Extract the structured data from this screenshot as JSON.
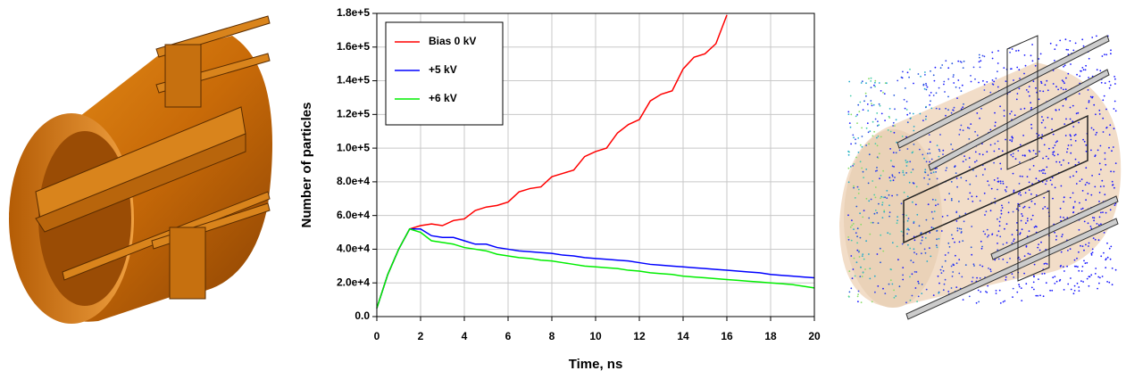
{
  "chart_data": {
    "type": "line",
    "x_label": "Time, ns",
    "y_label": "Number of particles",
    "x": [
      0,
      0.5,
      1,
      1.5,
      2,
      2.5,
      3,
      3.5,
      4,
      4.5,
      5,
      5.5,
      6,
      6.5,
      7,
      7.5,
      8,
      8.5,
      9,
      9.5,
      10,
      10.5,
      11,
      11.5,
      12,
      12.5,
      13,
      13.5,
      14,
      14.5,
      15,
      15.5,
      16,
      16.5,
      17,
      17.5,
      18,
      18.5,
      19,
      19.5,
      20
    ],
    "series": [
      {
        "name": "Bias 0 kV",
        "color": "#ff0000",
        "values": [
          5000,
          25000,
          40000,
          52000,
          54000,
          55000,
          54000,
          57000,
          58000,
          63000,
          65000,
          66000,
          68000,
          74000,
          76000,
          77000,
          83000,
          85000,
          87000,
          95000,
          98000,
          100000,
          109000,
          114000,
          117000,
          128000,
          132000,
          134000,
          147000,
          154000,
          156000,
          162000,
          179000,
          null,
          null,
          null,
          null,
          null,
          null,
          null,
          null
        ]
      },
      {
        "name": "+5 kV",
        "color": "#0000ff",
        "values": [
          5000,
          25000,
          40000,
          52000,
          52000,
          48000,
          47000,
          47000,
          45000,
          43000,
          43000,
          41000,
          40000,
          39000,
          38500,
          38000,
          37500,
          36500,
          36000,
          35000,
          34500,
          34000,
          33500,
          33000,
          32000,
          31000,
          30500,
          30000,
          29500,
          29000,
          28500,
          28000,
          27500,
          27000,
          26500,
          26000,
          25000,
          24500,
          24000,
          23500,
          23000
        ]
      },
      {
        "name": "+6 kV",
        "color": "#00ee00",
        "values": [
          5000,
          25000,
          40000,
          52000,
          50000,
          45000,
          44000,
          43000,
          41000,
          40000,
          39000,
          37000,
          36000,
          35000,
          34500,
          33500,
          33000,
          32000,
          31000,
          30000,
          29500,
          29000,
          28500,
          27500,
          27000,
          26000,
          25500,
          25000,
          24000,
          23500,
          23000,
          22500,
          22000,
          21500,
          21000,
          20500,
          20000,
          19500,
          19000,
          18000,
          17000
        ]
      }
    ],
    "xlim": [
      0,
      20
    ],
    "xticks": [
      0,
      2,
      4,
      6,
      8,
      10,
      12,
      14,
      16,
      18,
      20
    ],
    "ylim": [
      0,
      180000
    ],
    "yticks": [
      {
        "value": 0,
        "label": "0.0"
      },
      {
        "value": 20000,
        "label": "2.0e+4"
      },
      {
        "value": 40000,
        "label": "4.0e+4"
      },
      {
        "value": 60000,
        "label": "6.0e+4"
      },
      {
        "value": 80000,
        "label": "8.0e+4"
      },
      {
        "value": 100000,
        "label": "1.0e+5"
      },
      {
        "value": 120000,
        "label": "1.2e+5"
      },
      {
        "value": 140000,
        "label": "1.4e+5"
      },
      {
        "value": 160000,
        "label": "1.6e+5"
      },
      {
        "value": 180000,
        "label": "1.8e+5"
      }
    ],
    "grid": true,
    "legend": "upper left"
  }
}
